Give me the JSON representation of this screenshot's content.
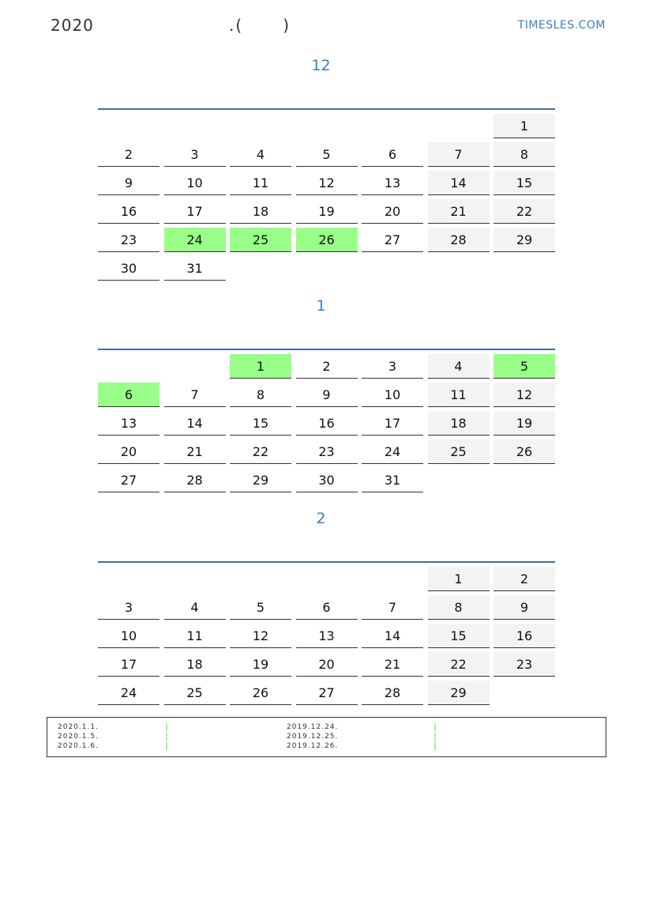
{
  "header": {
    "year": "2020",
    "middle": ".(      )",
    "site": "TIMESLES.COM"
  },
  "colors": {
    "holiday": "#99ff88",
    "weekend": "#f3f3f3",
    "title": "#3a7fc1",
    "rule": "#4a6a9a"
  },
  "months": [
    {
      "title": "12",
      "start_col": 6,
      "days": 31,
      "holidays": [
        24,
        25,
        26
      ]
    },
    {
      "title": "1",
      "start_col": 2,
      "days": 31,
      "holidays": [
        1,
        5,
        6
      ]
    },
    {
      "title": "2",
      "start_col": 5,
      "days": 29,
      "holidays": []
    }
  ],
  "legend": {
    "left": [
      "2020.1.1.",
      "2020.1.5.",
      "2020.1.6."
    ],
    "right": [
      "2019.12.24.",
      "2019.12.25.",
      "2019.12.26."
    ]
  }
}
